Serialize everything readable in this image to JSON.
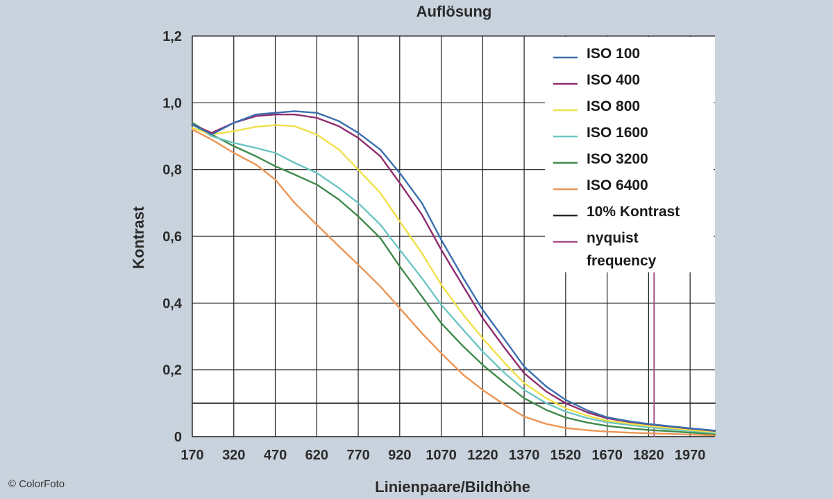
{
  "chart_data": {
    "type": "line",
    "title": "Auflösung",
    "xlabel": "Linienpaare/Bildhöhe",
    "ylabel": "Kontrast",
    "xlim": [
      170,
      2060
    ],
    "ylim": [
      0,
      1.2
    ],
    "x_ticks": [
      170,
      320,
      470,
      620,
      770,
      920,
      1070,
      1220,
      1370,
      1520,
      1670,
      1820,
      1970
    ],
    "x_tick_labels": [
      "170",
      "320",
      "470",
      "620",
      "770",
      "920",
      "1070",
      "1220",
      "1370",
      "1520",
      "1670",
      "1820",
      "1970"
    ],
    "y_ticks": [
      0,
      0.2,
      0.4,
      0.6,
      0.8,
      1.0,
      1.2
    ],
    "y_tick_labels": [
      "0",
      "0,2",
      "0,4",
      "0,6",
      "0,8",
      "1,0",
      "1,2"
    ],
    "grid": true,
    "legend_position": "top-right",
    "series": [
      {
        "name": "ISO 100",
        "color": "#3a6fae",
        "x": [
          170,
          240,
          320,
          400,
          470,
          540,
          620,
          700,
          770,
          850,
          920,
          1000,
          1070,
          1150,
          1220,
          1300,
          1370,
          1450,
          1520,
          1600,
          1670,
          1750,
          1820,
          1900,
          1970,
          2060
        ],
        "y": [
          0.935,
          0.905,
          0.94,
          0.965,
          0.97,
          0.975,
          0.97,
          0.945,
          0.91,
          0.86,
          0.79,
          0.7,
          0.59,
          0.475,
          0.38,
          0.29,
          0.21,
          0.15,
          0.11,
          0.078,
          0.058,
          0.046,
          0.038,
          0.031,
          0.025,
          0.018
        ]
      },
      {
        "name": "ISO 400",
        "color": "#8e2c6c",
        "x": [
          170,
          240,
          320,
          400,
          470,
          540,
          620,
          700,
          770,
          850,
          920,
          1000,
          1070,
          1150,
          1220,
          1300,
          1370,
          1450,
          1520,
          1600,
          1670,
          1750,
          1820,
          1900,
          1970,
          2060
        ],
        "y": [
          0.935,
          0.91,
          0.94,
          0.96,
          0.965,
          0.965,
          0.955,
          0.93,
          0.895,
          0.84,
          0.76,
          0.665,
          0.56,
          0.45,
          0.355,
          0.265,
          0.19,
          0.135,
          0.1,
          0.072,
          0.055,
          0.044,
          0.037,
          0.03,
          0.024,
          0.017
        ]
      },
      {
        "name": "ISO 800",
        "color": "#f0e048",
        "x": [
          170,
          240,
          320,
          400,
          470,
          540,
          620,
          700,
          770,
          850,
          920,
          1000,
          1070,
          1150,
          1220,
          1300,
          1370,
          1450,
          1520,
          1600,
          1670,
          1750,
          1820,
          1900,
          1970,
          2060
        ],
        "y": [
          0.925,
          0.905,
          0.915,
          0.928,
          0.933,
          0.93,
          0.905,
          0.86,
          0.8,
          0.73,
          0.645,
          0.55,
          0.455,
          0.365,
          0.295,
          0.22,
          0.16,
          0.115,
          0.085,
          0.062,
          0.048,
          0.039,
          0.032,
          0.026,
          0.02,
          0.014
        ]
      },
      {
        "name": "ISO 1600",
        "color": "#6cc5c3",
        "x": [
          170,
          240,
          320,
          400,
          470,
          540,
          620,
          700,
          770,
          850,
          920,
          1000,
          1070,
          1150,
          1220,
          1300,
          1370,
          1450,
          1520,
          1600,
          1670,
          1750,
          1820,
          1900,
          1970,
          2060
        ],
        "y": [
          0.935,
          0.9,
          0.88,
          0.865,
          0.85,
          0.82,
          0.79,
          0.745,
          0.7,
          0.635,
          0.56,
          0.475,
          0.395,
          0.32,
          0.255,
          0.19,
          0.14,
          0.1,
          0.075,
          0.055,
          0.043,
          0.035,
          0.028,
          0.022,
          0.017,
          0.011
        ]
      },
      {
        "name": "ISO 3200",
        "color": "#3f8a4a",
        "x": [
          170,
          240,
          320,
          400,
          470,
          540,
          620,
          700,
          770,
          850,
          920,
          1000,
          1070,
          1150,
          1220,
          1300,
          1370,
          1450,
          1520,
          1600,
          1670,
          1750,
          1820,
          1900,
          1970,
          2060
        ],
        "y": [
          0.94,
          0.905,
          0.87,
          0.84,
          0.81,
          0.785,
          0.755,
          0.71,
          0.66,
          0.595,
          0.51,
          0.42,
          0.34,
          0.27,
          0.215,
          0.16,
          0.115,
          0.08,
          0.057,
          0.042,
          0.032,
          0.025,
          0.02,
          0.016,
          0.012,
          0.008
        ]
      },
      {
        "name": "ISO 6400",
        "color": "#ec9554",
        "x": [
          170,
          240,
          320,
          400,
          470,
          540,
          620,
          700,
          770,
          850,
          920,
          1000,
          1070,
          1150,
          1220,
          1300,
          1370,
          1450,
          1520,
          1600,
          1670,
          1750,
          1820,
          1900,
          1970,
          2060
        ],
        "y": [
          0.92,
          0.89,
          0.85,
          0.815,
          0.77,
          0.7,
          0.635,
          0.57,
          0.515,
          0.45,
          0.385,
          0.31,
          0.25,
          0.185,
          0.14,
          0.095,
          0.06,
          0.038,
          0.026,
          0.019,
          0.015,
          0.012,
          0.01,
          0.008,
          0.006,
          0.004
        ]
      },
      {
        "name": "10% Kontrast",
        "color": "#2b2b2b",
        "x": [
          170,
          2060
        ],
        "y": [
          0.1,
          0.1
        ]
      },
      {
        "name": "nyquist frequency",
        "color": "#a4508c",
        "x": [
          1840,
          1840
        ],
        "y": [
          0,
          0.5
        ]
      }
    ]
  },
  "copyright": "© ColorFoto"
}
